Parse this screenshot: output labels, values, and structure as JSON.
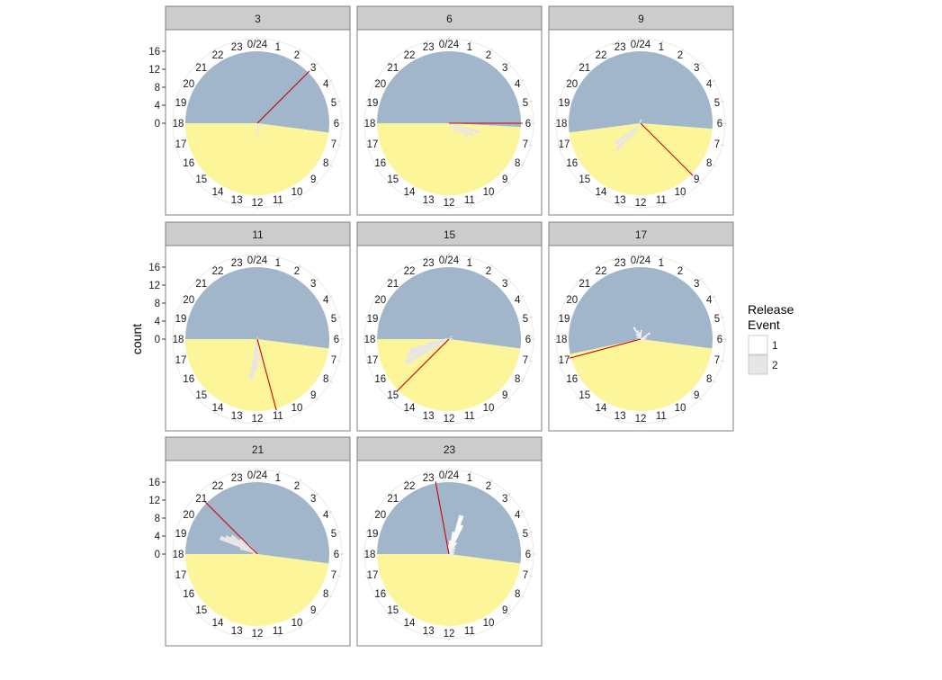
{
  "chart_data": {
    "type": "polar-histogram",
    "ylabel": "count",
    "radial_ticks": [
      0,
      4,
      8,
      12,
      16
    ],
    "radial_max": 16,
    "hour_labels": [
      "0/24",
      "1",
      "2",
      "3",
      "4",
      "5",
      "6",
      "7",
      "8",
      "9",
      "10",
      "11",
      "12",
      "13",
      "14",
      "15",
      "16",
      "17",
      "18",
      "19",
      "20",
      "21",
      "22",
      "23"
    ],
    "legend": {
      "title_line1": "Release",
      "title_line2": "Event",
      "entries": [
        {
          "label": "1",
          "color": "#ffffff"
        },
        {
          "label": "2",
          "color": "#e6e6e6"
        }
      ]
    },
    "colors": {
      "night": "#a1b5cb",
      "day": "#fdf59a",
      "release_line": "#cc0000",
      "strip": "#cccccc"
    },
    "panels": [
      {
        "label": "3",
        "sunrise_hour": 6.5,
        "sunset_hour": 18.0,
        "release_hour": 3.0,
        "bins": [
          {
            "event": 2,
            "hour": 7.3,
            "count": 2
          },
          {
            "event": 2,
            "hour": 8.2,
            "count": 1.8
          },
          {
            "event": 2,
            "hour": 9.0,
            "count": 1.5
          },
          {
            "event": 2,
            "hour": 10.2,
            "count": 1.3
          },
          {
            "event": 2,
            "hour": 11.3,
            "count": 2.5
          },
          {
            "event": 2,
            "hour": 12.0,
            "count": 2.7
          },
          {
            "event": 2,
            "hour": 12.6,
            "count": 1.7
          },
          {
            "event": 1,
            "hour": 12.3,
            "count": 1.2
          }
        ]
      },
      {
        "label": "6",
        "sunrise_hour": 6.2,
        "sunset_hour": 18.0,
        "release_hour": 6.0,
        "bins": [
          {
            "event": 2,
            "hour": 7.1,
            "count": 7
          },
          {
            "event": 2,
            "hour": 7.7,
            "count": 6
          },
          {
            "event": 2,
            "hour": 8.3,
            "count": 5
          },
          {
            "event": 2,
            "hour": 9.0,
            "count": 3
          },
          {
            "event": 2,
            "hour": 9.8,
            "count": 2
          },
          {
            "event": 2,
            "hour": 10.5,
            "count": 1.5
          },
          {
            "event": 1,
            "hour": 8.0,
            "count": 1.5
          }
        ]
      },
      {
        "label": "9",
        "sunrise_hour": 6.3,
        "sunset_hour": 17.5,
        "release_hour": 9.0,
        "bins": [
          {
            "event": 2,
            "hour": 14.8,
            "count": 8
          },
          {
            "event": 2,
            "hour": 15.4,
            "count": 7
          },
          {
            "event": 2,
            "hour": 14.2,
            "count": 4
          },
          {
            "event": 2,
            "hour": 13.5,
            "count": 2
          },
          {
            "event": 1,
            "hour": 13.0,
            "count": 1
          },
          {
            "event": 1,
            "hour": 0.5,
            "count": 0.8
          },
          {
            "event": 1,
            "hour": 23.4,
            "count": 0.7
          }
        ]
      },
      {
        "label": "11",
        "sunrise_hour": 6.5,
        "sunset_hour": 18.0,
        "release_hour": 11.0,
        "bins": [
          {
            "event": 2,
            "hour": 12.6,
            "count": 9
          },
          {
            "event": 2,
            "hour": 12.2,
            "count": 7
          },
          {
            "event": 2,
            "hour": 11.6,
            "count": 5
          },
          {
            "event": 2,
            "hour": 12.9,
            "count": 3
          },
          {
            "event": 1,
            "hour": 11.3,
            "count": 1.5
          },
          {
            "event": 1,
            "hour": 0.3,
            "count": 0.6
          }
        ]
      },
      {
        "label": "15",
        "sunrise_hour": 6.5,
        "sunset_hour": 18.0,
        "release_hour": 15.0,
        "bins": [
          {
            "event": 2,
            "hour": 16.1,
            "count": 11
          },
          {
            "event": 2,
            "hour": 16.6,
            "count": 10
          },
          {
            "event": 2,
            "hour": 16.9,
            "count": 9
          },
          {
            "event": 2,
            "hour": 17.2,
            "count": 5
          },
          {
            "event": 2,
            "hour": 17.6,
            "count": 2.5
          },
          {
            "event": 1,
            "hour": 16.0,
            "count": 2.5
          },
          {
            "event": 1,
            "hour": 18.2,
            "count": 1
          },
          {
            "event": 1,
            "hour": 2.8,
            "count": 1
          },
          {
            "event": 1,
            "hour": 5.5,
            "count": 0.8
          }
        ]
      },
      {
        "label": "17",
        "sunrise_hour": 6.5,
        "sunset_hour": 17.2,
        "release_hour": 17.0,
        "bins": [
          {
            "event": 1,
            "hour": 22.0,
            "count": 3
          },
          {
            "event": 1,
            "hour": 22.8,
            "count": 2
          },
          {
            "event": 1,
            "hour": 23.5,
            "count": 1.5
          },
          {
            "event": 1,
            "hour": 0.3,
            "count": 2
          },
          {
            "event": 1,
            "hour": 21.0,
            "count": 1.5
          },
          {
            "event": 1,
            "hour": 3.8,
            "count": 2.5
          },
          {
            "event": 1,
            "hour": 4.5,
            "count": 1.5
          },
          {
            "event": 1,
            "hour": 5.5,
            "count": 1.2
          },
          {
            "event": 1,
            "hour": 19.5,
            "count": 1
          },
          {
            "event": 1,
            "hour": 17.5,
            "count": 1
          },
          {
            "event": 1,
            "hour": 6.6,
            "count": 0.8
          },
          {
            "event": 1,
            "hour": 8.0,
            "count": 0.6
          }
        ]
      },
      {
        "label": "21",
        "sunrise_hour": 6.5,
        "sunset_hour": 18.0,
        "release_hour": 21.0,
        "bins": [
          {
            "event": 2,
            "hour": 19.6,
            "count": 9
          },
          {
            "event": 2,
            "hour": 19.9,
            "count": 8
          },
          {
            "event": 2,
            "hour": 20.3,
            "count": 7
          },
          {
            "event": 2,
            "hour": 20.7,
            "count": 5
          },
          {
            "event": 2,
            "hour": 19.2,
            "count": 4
          },
          {
            "event": 2,
            "hour": 21.2,
            "count": 3
          },
          {
            "event": 1,
            "hour": 20.5,
            "count": 1.5
          },
          {
            "event": 1,
            "hour": 18.6,
            "count": 1
          }
        ]
      },
      {
        "label": "23",
        "sunrise_hour": 6.5,
        "sunset_hour": 18.0,
        "release_hour": 23.3,
        "bins": [
          {
            "event": 1,
            "hour": 1.2,
            "count": 9
          },
          {
            "event": 1,
            "hour": 1.6,
            "count": 7
          },
          {
            "event": 1,
            "hour": 0.8,
            "count": 5
          },
          {
            "event": 1,
            "hour": 2.2,
            "count": 3
          },
          {
            "event": 1,
            "hour": 0.3,
            "count": 3
          },
          {
            "event": 1,
            "hour": 23.7,
            "count": 2
          },
          {
            "event": 1,
            "hour": 3.0,
            "count": 2
          },
          {
            "event": 1,
            "hour": 4.0,
            "count": 1.5
          },
          {
            "event": 1,
            "hour": 5.2,
            "count": 1.2
          },
          {
            "event": 1,
            "hour": 6.0,
            "count": 1
          },
          {
            "event": 1,
            "hour": 7.2,
            "count": 1.3
          },
          {
            "event": 1,
            "hour": 11.0,
            "count": 1
          },
          {
            "event": 1,
            "hour": 12.6,
            "count": 0.8
          }
        ]
      }
    ]
  }
}
